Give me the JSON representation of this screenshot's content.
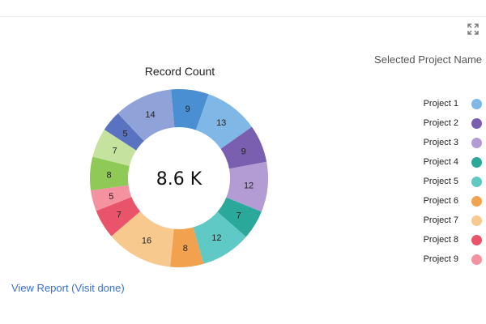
{
  "legend_title": "Selected Project Name",
  "view_report_link": "View Report (Visit done)",
  "chart_data": {
    "type": "pie",
    "variant": "donut",
    "title": "Record Count",
    "center_label": "8.6 K",
    "slices": [
      {
        "value": 9,
        "color": "#4a8fd1"
      },
      {
        "value": 13,
        "color": "#7fb8e6"
      },
      {
        "value": 9,
        "color": "#7a5fb0"
      },
      {
        "value": 12,
        "color": "#b39cd4"
      },
      {
        "value": 7,
        "color": "#2aa99b"
      },
      {
        "value": 12,
        "color": "#5ec9c5"
      },
      {
        "value": 8,
        "color": "#f2a24e"
      },
      {
        "value": 16,
        "color": "#f8c98f"
      },
      {
        "value": 7,
        "color": "#e9546b"
      },
      {
        "value": 5,
        "color": "#f492a0"
      },
      {
        "value": 8,
        "color": "#8fca56"
      },
      {
        "value": 7,
        "color": "#c5e39e"
      },
      {
        "value": 5,
        "color": "#5a73c0"
      },
      {
        "value": 14,
        "color": "#8fa3d9"
      }
    ],
    "legend": [
      {
        "label": "Project 1",
        "color": "#7fb8e6"
      },
      {
        "label": "Project 2",
        "color": "#7a5fb0"
      },
      {
        "label": "Project 3",
        "color": "#b39cd4"
      },
      {
        "label": "Project 4",
        "color": "#2aa99b"
      },
      {
        "label": "Project 5",
        "color": "#5ec9c5"
      },
      {
        "label": "Project 6",
        "color": "#f2a24e"
      },
      {
        "label": "Project 7",
        "color": "#f8c98f"
      },
      {
        "label": "Project 8",
        "color": "#e9546b"
      },
      {
        "label": "Project 9",
        "color": "#f492a0"
      }
    ],
    "legend_position": "right"
  },
  "icons": {
    "expand": "expand-icon"
  }
}
